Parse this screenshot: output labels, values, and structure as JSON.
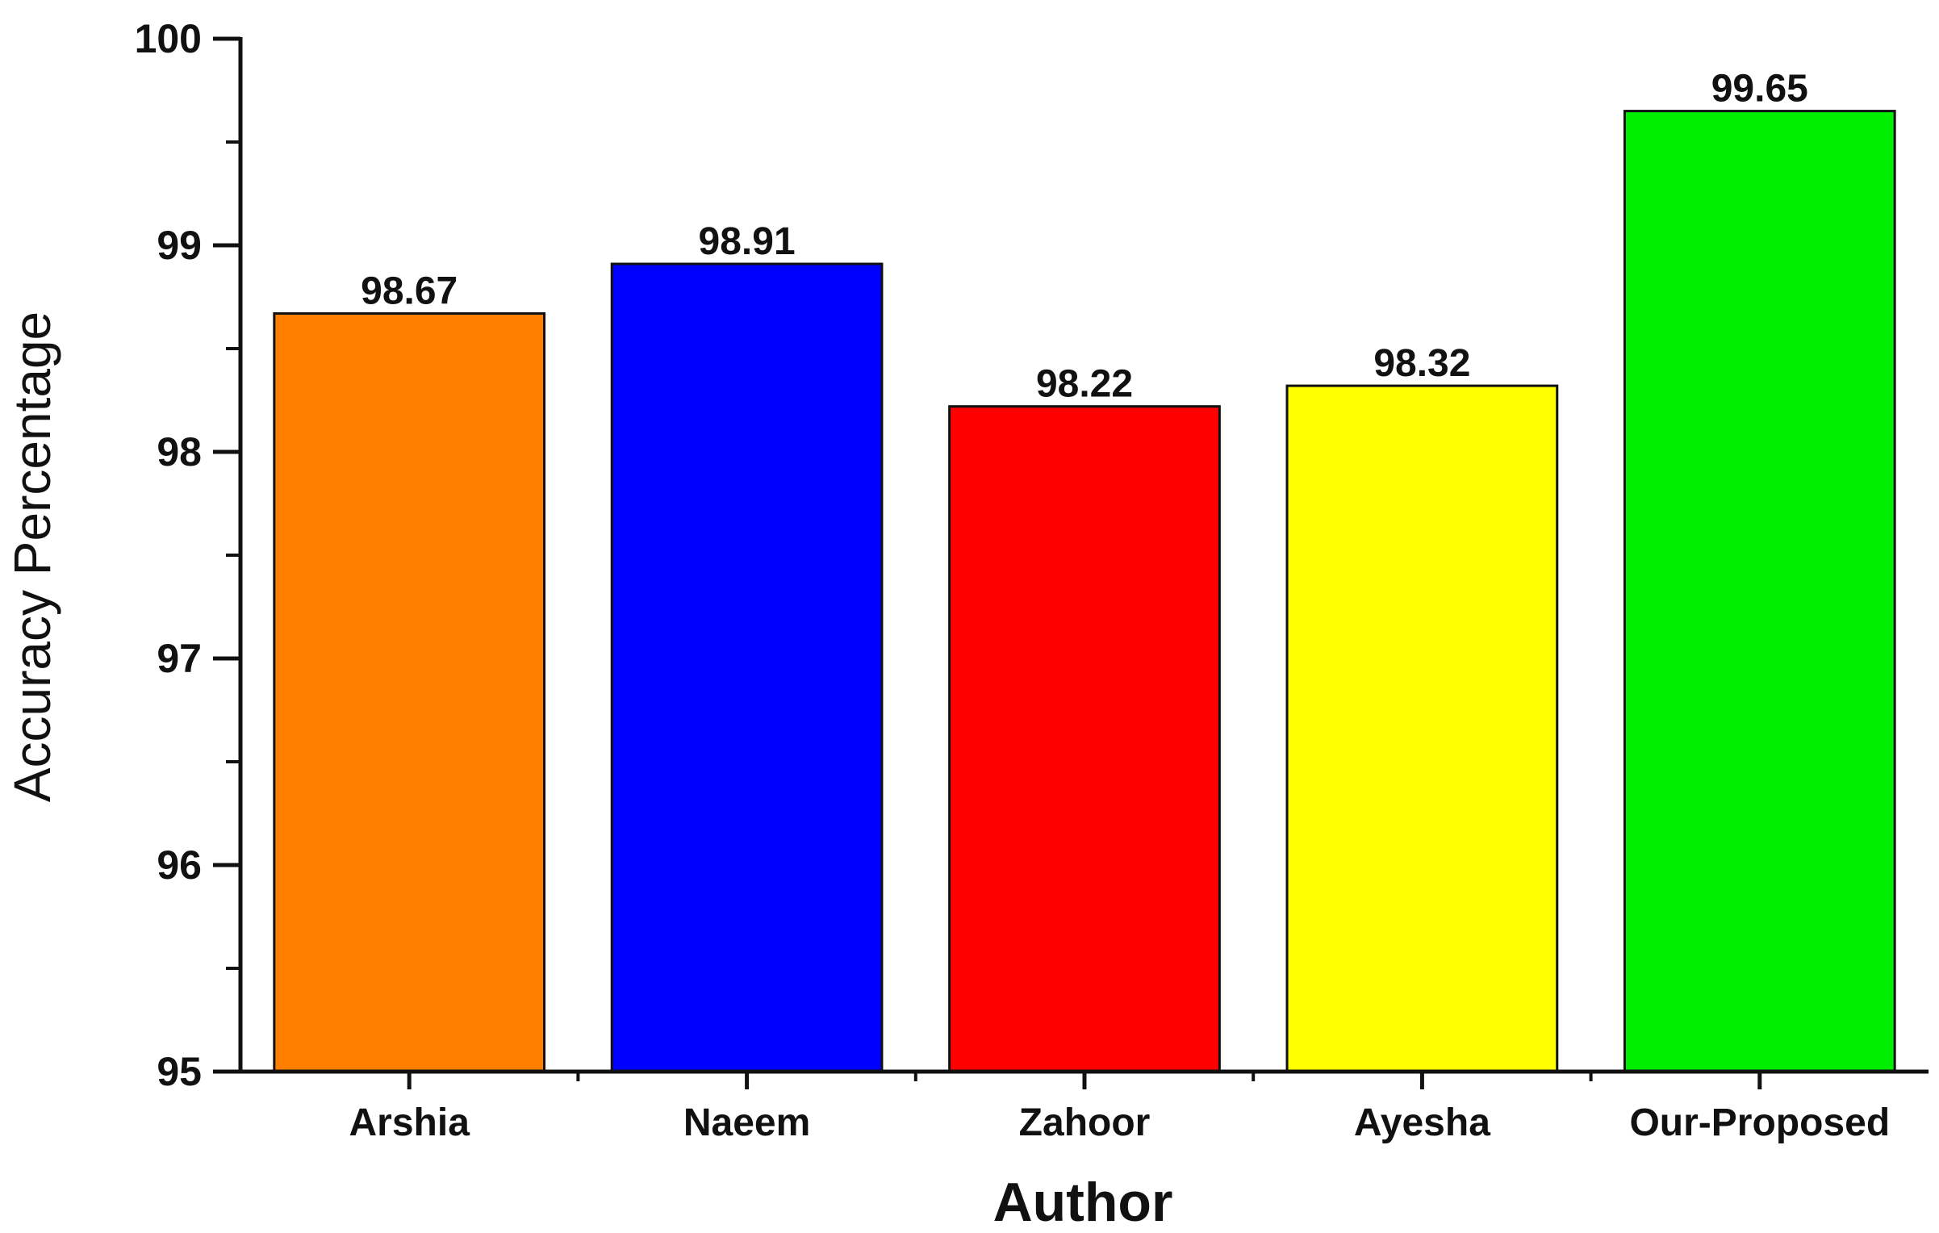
{
  "chart_data": {
    "type": "bar",
    "title": "",
    "xlabel": "Author",
    "ylabel": "Accuracy Percentage",
    "categories": [
      "Arshia",
      "Naeem",
      "Zahoor",
      "Ayesha",
      "Our-Proposed"
    ],
    "values": [
      98.67,
      98.91,
      98.22,
      98.32,
      99.65
    ],
    "value_labels": [
      "98.67",
      "98.91",
      "98.22",
      "98.32",
      "99.65"
    ],
    "colors": [
      "#FF8000",
      "#0000FF",
      "#FF0000",
      "#FFFF00",
      "#00EE00"
    ],
    "ylim": [
      95,
      100
    ],
    "yticks": [
      95,
      96,
      97,
      98,
      99,
      100
    ],
    "ytick_labels": [
      "95",
      "96",
      "97",
      "98",
      "99",
      "100"
    ],
    "grid": false,
    "legend": "none"
  }
}
